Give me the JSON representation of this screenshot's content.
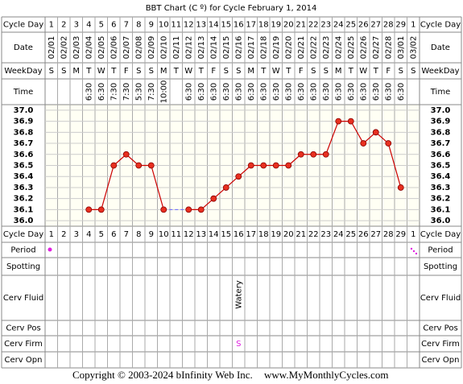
{
  "title": "BBT Chart (C º) for Cycle February 1, 2014",
  "row_labels": [
    "Cycle Day",
    "Date",
    "WeekDay",
    "Time",
    "Cycle Day",
    "Period",
    "Spotting",
    "Cerv Fluid",
    "Cerv Pos",
    "Cerv Firm",
    "Cerv Opn"
  ],
  "cycle_days": [
    1,
    2,
    3,
    4,
    5,
    6,
    7,
    8,
    9,
    10,
    11,
    12,
    13,
    14,
    15,
    16,
    17,
    18,
    19,
    20,
    21,
    22,
    23,
    24,
    25,
    26,
    27,
    28,
    29,
    1
  ],
  "dates": [
    "02/01",
    "02/02",
    "02/03",
    "02/04",
    "02/05",
    "02/06",
    "02/07",
    "02/08",
    "02/09",
    "02/10",
    "02/11",
    "02/12",
    "02/13",
    "02/14",
    "02/15",
    "02/16",
    "02/17",
    "02/18",
    "02/19",
    "02/20",
    "02/21",
    "02/22",
    "02/23",
    "02/24",
    "02/25",
    "02/26",
    "02/27",
    "02/28",
    "03/01",
    "03/02"
  ],
  "weekdays": [
    "S",
    "S",
    "M",
    "T",
    "W",
    "T",
    "F",
    "S",
    "S",
    "M",
    "T",
    "W",
    "T",
    "F",
    "S",
    "S",
    "M",
    "T",
    "W",
    "T",
    "F",
    "S",
    "S",
    "M",
    "T",
    "W",
    "T",
    "F",
    "S",
    "S"
  ],
  "times": [
    null,
    null,
    null,
    "6:30",
    "6:30",
    "7:30",
    "7:30",
    "5:30",
    "7:30",
    "10:00",
    null,
    "6:30",
    "6:30",
    "6:30",
    "6:30",
    "6:30",
    "6:30",
    "6:30",
    "6:30",
    "6:30",
    "6:30",
    "6:30",
    "6:30",
    "6:30",
    "6:30",
    "6:30",
    "6:30",
    "6:30",
    "6:30",
    null
  ],
  "cerv_fluid": [
    null,
    null,
    null,
    null,
    null,
    null,
    null,
    null,
    null,
    null,
    null,
    null,
    null,
    null,
    null,
    "Watery",
    null,
    null,
    null,
    null,
    null,
    null,
    null,
    null,
    null,
    null,
    null,
    null,
    null,
    null
  ],
  "cerv_firm": [
    null,
    null,
    null,
    null,
    null,
    null,
    null,
    null,
    null,
    null,
    null,
    null,
    null,
    null,
    null,
    "S",
    null,
    null,
    null,
    null,
    null,
    null,
    null,
    null,
    null,
    null,
    null,
    null,
    null,
    null
  ],
  "chart_data": {
    "type": "line",
    "values": [
      null,
      null,
      null,
      36.1,
      36.1,
      36.5,
      36.6,
      36.5,
      36.5,
      36.1,
      null,
      36.1,
      36.1,
      36.2,
      36.3,
      36.4,
      36.5,
      36.5,
      36.5,
      36.5,
      36.6,
      36.6,
      36.6,
      36.9,
      36.9,
      36.7,
      36.8,
      36.7,
      36.3,
      null
    ],
    "color": "#cc0000",
    "ylim": [
      35.95,
      37.05
    ],
    "yticks": [
      {
        "value": 37,
        "label": "37.0"
      },
      36.9,
      36.8,
      36.7,
      36.6,
      36.5,
      36.4,
      36.3,
      36.2,
      36.1,
      {
        "value": 36,
        "label": "36.0"
      }
    ],
    "grid": true
  },
  "footer": [
    "Copyright © 2003-2024 bInfinity Web Inc.",
    "www.MyMonthlyCycles.com"
  ]
}
